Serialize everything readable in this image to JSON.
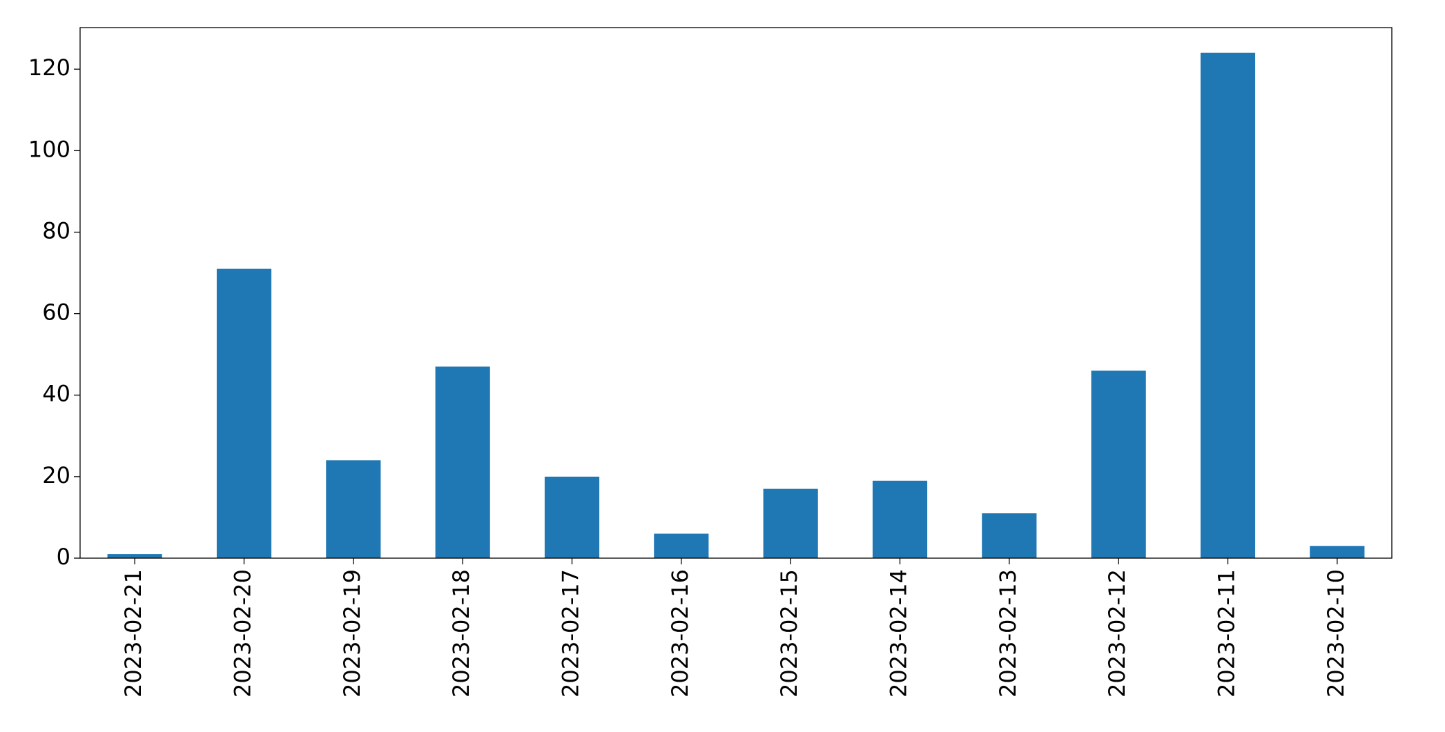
{
  "chart_data": {
    "type": "bar",
    "categories": [
      "2023-02-21",
      "2023-02-20",
      "2023-02-19",
      "2023-02-18",
      "2023-02-17",
      "2023-02-16",
      "2023-02-15",
      "2023-02-14",
      "2023-02-13",
      "2023-02-12",
      "2023-02-11",
      "2023-02-10"
    ],
    "values": [
      1,
      71,
      24,
      47,
      20,
      6,
      17,
      19,
      11,
      46,
      124,
      3
    ],
    "color": "#1f77b4",
    "ylim": [
      0,
      130.2
    ],
    "yticks": [
      0,
      20,
      40,
      60,
      80,
      100,
      120
    ],
    "grid": false
  }
}
